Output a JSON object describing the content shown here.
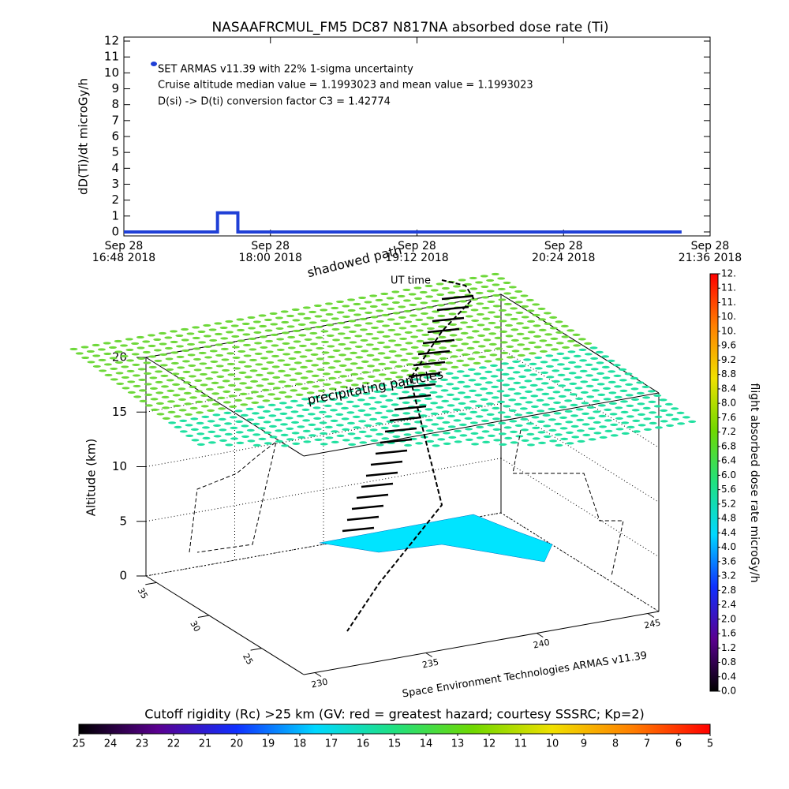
{
  "chart_data": [
    {
      "type": "line",
      "title": "NASAAFRCMUL_FM5 DC87 N817NA absorbed dose rate (Ti)",
      "ylabel": "dD(Ti)/dt microGy/h",
      "xlim": [
        "16:48",
        "21:36"
      ],
      "xticks": [
        {
          "value": "16:48",
          "label": "Sep 28\n16:48 2018"
        },
        {
          "value": "18:00",
          "label": "Sep 28\n18:00 2018"
        },
        {
          "value": "19:12",
          "label": "Sep 28\n19:12 2018"
        },
        {
          "value": "20:24",
          "label": "Sep 28\n20:24 2018"
        },
        {
          "value": "21:36",
          "label": "Sep 28\n21:36 2018"
        }
      ],
      "ylim": [
        -0.25,
        12.25
      ],
      "yticks": [
        0,
        1,
        2,
        3,
        4,
        5,
        6,
        7,
        8,
        9,
        10,
        11,
        12
      ],
      "series": [
        {
          "name": "SET ARMAS v11.39 with 22% 1-sigma uncertainty",
          "color": "#1f3fd6",
          "x": [
            "16:48",
            "17:34",
            "17:34",
            "17:44",
            "17:44",
            "21:22"
          ],
          "values": [
            0,
            0,
            1.2,
            1.2,
            0,
            0
          ]
        }
      ],
      "annotations": [
        "Cruise altitude median value = 1.1993023 and mean value = 1.1993023",
        "D(si) -> D(ti) conversion factor C3 = 1.42774"
      ]
    },
    {
      "type": "surface3d",
      "zlabel": "Altitude (km)",
      "xlim": [
        229.5,
        245.5
      ],
      "xticks": [
        230,
        235,
        240,
        245
      ],
      "ylim": [
        21,
        36
      ],
      "yticks": [
        25,
        30,
        35
      ],
      "zlim": [
        0,
        20
      ],
      "zticks": [
        0,
        5,
        10,
        15,
        20
      ],
      "annotations": [
        "shadowed path",
        "precipitating particles",
        "UT time",
        "Space Environment Technologies ARMAS v11.39"
      ]
    },
    {
      "type": "colorbar",
      "orientation": "vertical",
      "label": "flight absorbed dose rate microGy/h",
      "colors": [
        "#000000",
        "#5a0090",
        "#1030ff",
        "#00d8ff",
        "#20e080",
        "#70d800",
        "#f0e000",
        "#ff8000",
        "#ff0000"
      ],
      "lim": [
        0,
        11.6
      ],
      "ticks": [
        {
          "value": 0,
          "label": "0.0"
        },
        0.4,
        0.8,
        1.2,
        1.6,
        {
          "value": 2,
          "label": "2.0"
        },
        2.4,
        2.8,
        3.2,
        3.6,
        {
          "value": 4,
          "label": "4.0"
        },
        4.4,
        4.8,
        5.2,
        5.6,
        {
          "value": 6,
          "label": "6.0"
        },
        6.4,
        6.8,
        7.2,
        7.6,
        {
          "value": 8,
          "label": "8.0"
        },
        8.4,
        8.8,
        9.2,
        9.6,
        {
          "value": 10,
          "label": "10."
        },
        {
          "value": 10.4,
          "label": "10."
        },
        {
          "value": 10.8,
          "label": "11."
        },
        {
          "value": 11.2,
          "label": "11."
        },
        {
          "value": 11.6,
          "label": "12."
        }
      ]
    },
    {
      "type": "colorbar",
      "orientation": "horizontal",
      "label": "Cutoff rigidity (Rc) >25 km (GV: red = greatest hazard; courtesy SSSRC; Kp=2)",
      "colors": [
        "#000000",
        "#5a0090",
        "#1030ff",
        "#00d8ff",
        "#20e080",
        "#70d800",
        "#f0e000",
        "#ff8000",
        "#ff0000"
      ],
      "lim": [
        25,
        5
      ],
      "ticks": [
        25,
        24,
        23,
        22,
        21,
        20,
        19,
        18,
        17,
        16,
        15,
        14,
        13,
        12,
        11,
        10,
        9,
        8,
        7,
        6,
        5
      ]
    }
  ]
}
